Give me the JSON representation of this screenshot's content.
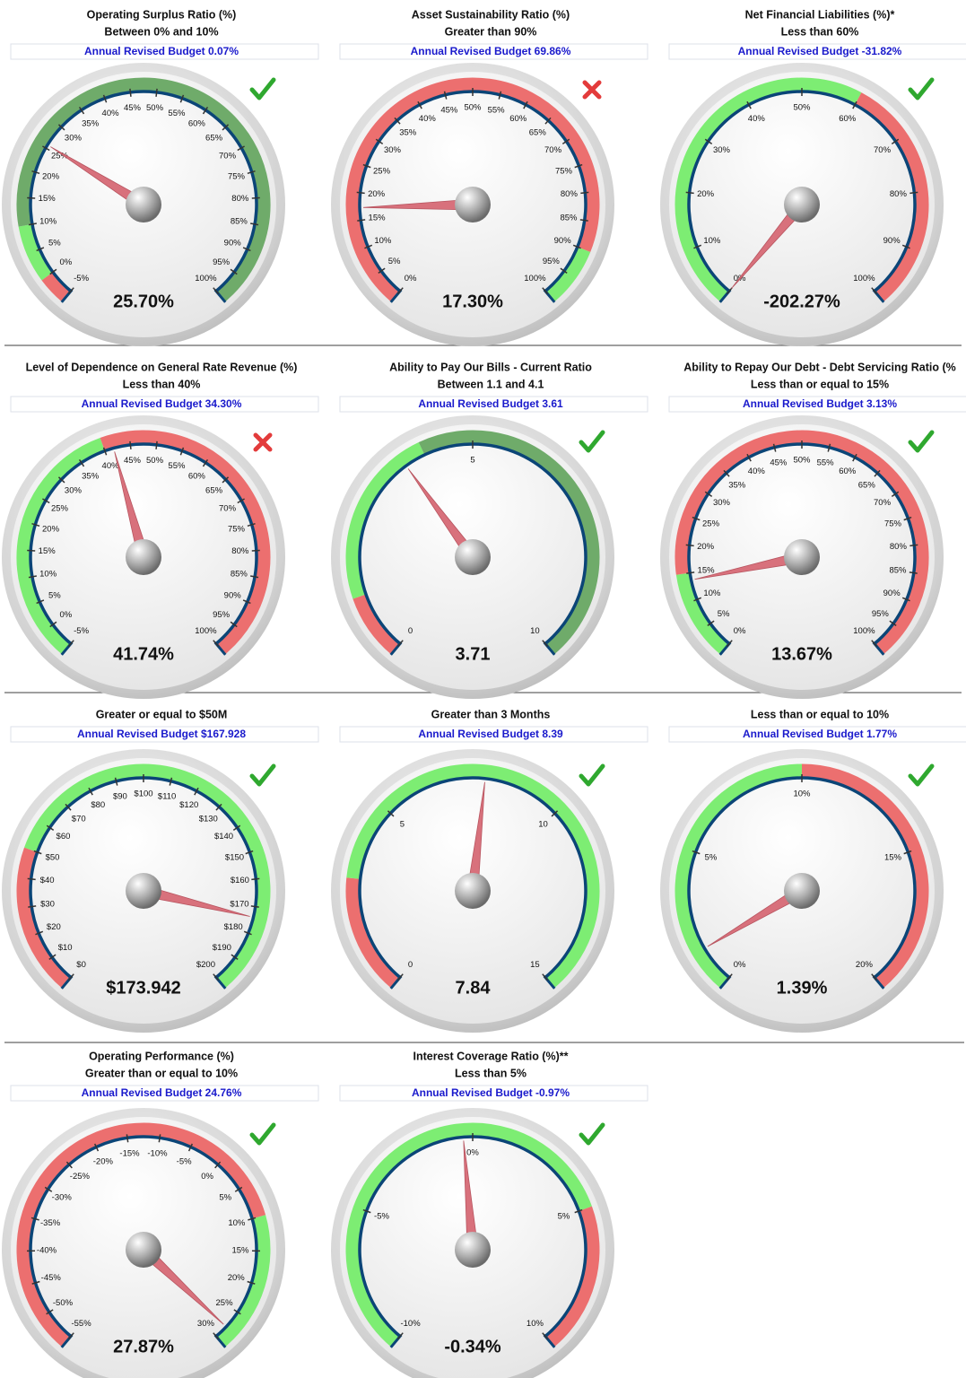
{
  "chart_data": [
    {
      "type": "gauge",
      "title": "Operating Surplus Ratio (%)",
      "subtitle": "Between 0% and 10%",
      "annotation": "Annual Revised Budget 0.07%",
      "value": 25.7,
      "value_label": "25.70%",
      "status": "pass",
      "ylim": [
        -5,
        100
      ],
      "yticks": [
        {
          "value": -5,
          "label": "-5%"
        },
        {
          "value": 0,
          "label": "0%"
        },
        {
          "value": 5,
          "label": "5%"
        },
        {
          "value": 10,
          "label": "10%"
        },
        {
          "value": 15,
          "label": "15%"
        },
        {
          "value": 20,
          "label": "20%"
        },
        {
          "value": 25,
          "label": "25%"
        },
        {
          "value": 30,
          "label": "30%"
        },
        {
          "value": 35,
          "label": "35%"
        },
        {
          "value": 40,
          "label": "40%"
        },
        {
          "value": 45,
          "label": "45%"
        },
        {
          "value": 50,
          "label": "50%"
        },
        {
          "value": 55,
          "label": "55%"
        },
        {
          "value": 60,
          "label": "60%"
        },
        {
          "value": 65,
          "label": "65%"
        },
        {
          "value": 70,
          "label": "70%"
        },
        {
          "value": 75,
          "label": "75%"
        },
        {
          "value": 80,
          "label": "80%"
        },
        {
          "value": 85,
          "label": "85%"
        },
        {
          "value": 90,
          "label": "90%"
        },
        {
          "value": 95,
          "label": "95%"
        },
        {
          "value": 100,
          "label": "100%"
        }
      ],
      "bands": [
        {
          "from": -5,
          "to": 0,
          "color": "#ec6f6f"
        },
        {
          "from": 0,
          "to": 10,
          "color": "#7ded73"
        },
        {
          "from": 10,
          "to": 100,
          "color": "#6fab6a"
        }
      ]
    },
    {
      "type": "gauge",
      "title": "Asset Sustainability Ratio (%)",
      "subtitle": "Greater than 90%",
      "annotation": "Annual Revised Budget  69.86%",
      "value": 17.3,
      "value_label": "17.30%",
      "status": "fail",
      "ylim": [
        0,
        100
      ],
      "yticks": [
        {
          "value": 0,
          "label": "0%"
        },
        {
          "value": 5,
          "label": "5%"
        },
        {
          "value": 10,
          "label": "10%"
        },
        {
          "value": 15,
          "label": "15%"
        },
        {
          "value": 20,
          "label": "20%"
        },
        {
          "value": 25,
          "label": "25%"
        },
        {
          "value": 30,
          "label": "30%"
        },
        {
          "value": 35,
          "label": "35%"
        },
        {
          "value": 40,
          "label": "40%"
        },
        {
          "value": 45,
          "label": "45%"
        },
        {
          "value": 50,
          "label": "50%"
        },
        {
          "value": 55,
          "label": "55%"
        },
        {
          "value": 60,
          "label": "60%"
        },
        {
          "value": 65,
          "label": "65%"
        },
        {
          "value": 70,
          "label": "70%"
        },
        {
          "value": 75,
          "label": "75%"
        },
        {
          "value": 80,
          "label": "80%"
        },
        {
          "value": 85,
          "label": "85%"
        },
        {
          "value": 90,
          "label": "90%"
        },
        {
          "value": 95,
          "label": "95%"
        },
        {
          "value": 100,
          "label": "100%"
        }
      ],
      "bands": [
        {
          "from": 0,
          "to": 90,
          "color": "#ec6f6f"
        },
        {
          "from": 90,
          "to": 100,
          "color": "#7ded73"
        }
      ]
    },
    {
      "type": "gauge",
      "title": "Net Financial Liabilities (%)*",
      "subtitle": "Less than 60%",
      "annotation": "Annual Revised Budget -31.82%",
      "value": -202.27,
      "value_label": "-202.27%",
      "status": "pass",
      "ylim": [
        0,
        100
      ],
      "yticks": [
        {
          "value": 0,
          "label": "0%"
        },
        {
          "value": 10,
          "label": "10%"
        },
        {
          "value": 20,
          "label": "20%"
        },
        {
          "value": 30,
          "label": "30%"
        },
        {
          "value": 40,
          "label": "40%"
        },
        {
          "value": 50,
          "label": "50%"
        },
        {
          "value": 60,
          "label": "60%"
        },
        {
          "value": 70,
          "label": "70%"
        },
        {
          "value": 80,
          "label": "80%"
        },
        {
          "value": 90,
          "label": "90%"
        },
        {
          "value": 100,
          "label": "100%"
        }
      ],
      "bands": [
        {
          "from": 0,
          "to": 60,
          "color": "#7ded73"
        },
        {
          "from": 60,
          "to": 100,
          "color": "#ec6f6f"
        }
      ]
    },
    {
      "type": "gauge",
      "title": "Level of Dependence on General Rate Revenue (%)",
      "subtitle": "Less than 40%",
      "annotation": "Annual Revised Budget  34.30%",
      "value": 41.74,
      "value_label": "41.74%",
      "status": "fail",
      "ylim": [
        -5,
        100
      ],
      "yticks": [
        {
          "value": -5,
          "label": "-5%"
        },
        {
          "value": 0,
          "label": "0%"
        },
        {
          "value": 5,
          "label": "5%"
        },
        {
          "value": 10,
          "label": "10%"
        },
        {
          "value": 15,
          "label": "15%"
        },
        {
          "value": 20,
          "label": "20%"
        },
        {
          "value": 25,
          "label": "25%"
        },
        {
          "value": 30,
          "label": "30%"
        },
        {
          "value": 35,
          "label": "35%"
        },
        {
          "value": 40,
          "label": "40%"
        },
        {
          "value": 45,
          "label": "45%"
        },
        {
          "value": 50,
          "label": "50%"
        },
        {
          "value": 55,
          "label": "55%"
        },
        {
          "value": 60,
          "label": "60%"
        },
        {
          "value": 65,
          "label": "65%"
        },
        {
          "value": 70,
          "label": "70%"
        },
        {
          "value": 75,
          "label": "75%"
        },
        {
          "value": 80,
          "label": "80%"
        },
        {
          "value": 85,
          "label": "85%"
        },
        {
          "value": 90,
          "label": "90%"
        },
        {
          "value": 95,
          "label": "95%"
        },
        {
          "value": 100,
          "label": "100%"
        }
      ],
      "bands": [
        {
          "from": -5,
          "to": 40,
          "color": "#7ded73"
        },
        {
          "from": 40,
          "to": 100,
          "color": "#ec6f6f"
        }
      ]
    },
    {
      "type": "gauge",
      "title": "Ability to Pay Our Bills - Current Ratio",
      "subtitle": "Between 1.1 and 4.1",
      "annotation": "Annual Revised Budget 3.61",
      "value": 3.71,
      "status": "pass",
      "ylim": [
        0,
        10
      ],
      "yticks": [
        0,
        5,
        10
      ],
      "bands": [
        {
          "from": 0,
          "to": 1.1,
          "color": "#ec6f6f"
        },
        {
          "from": 1.1,
          "to": 4.1,
          "color": "#7ded73"
        },
        {
          "from": 4.1,
          "to": 10,
          "color": "#6fab6a"
        }
      ]
    },
    {
      "type": "gauge",
      "title": "Ability to Repay Our Debt - Debt Servicing Ratio (%",
      "subtitle": "Less than or equal to 15%",
      "annotation": "Annual Revised Budget 3.13%",
      "value": 13.67,
      "value_label": "13.67%",
      "status": "pass",
      "ylim": [
        0,
        100
      ],
      "yticks": [
        {
          "value": 0,
          "label": "0%"
        },
        {
          "value": 5,
          "label": "5%"
        },
        {
          "value": 10,
          "label": "10%"
        },
        {
          "value": 15,
          "label": "15%"
        },
        {
          "value": 20,
          "label": "20%"
        },
        {
          "value": 25,
          "label": "25%"
        },
        {
          "value": 30,
          "label": "30%"
        },
        {
          "value": 35,
          "label": "35%"
        },
        {
          "value": 40,
          "label": "40%"
        },
        {
          "value": 45,
          "label": "45%"
        },
        {
          "value": 50,
          "label": "50%"
        },
        {
          "value": 55,
          "label": "55%"
        },
        {
          "value": 60,
          "label": "60%"
        },
        {
          "value": 65,
          "label": "65%"
        },
        {
          "value": 70,
          "label": "70%"
        },
        {
          "value": 75,
          "label": "75%"
        },
        {
          "value": 80,
          "label": "80%"
        },
        {
          "value": 85,
          "label": "85%"
        },
        {
          "value": 90,
          "label": "90%"
        },
        {
          "value": 95,
          "label": "95%"
        },
        {
          "value": 100,
          "label": "100%"
        }
      ],
      "bands": [
        {
          "from": 0,
          "to": 15,
          "color": "#7ded73"
        },
        {
          "from": 15,
          "to": 100,
          "color": "#ec6f6f"
        }
      ]
    },
    {
      "type": "gauge",
      "subtitle": "Greater or equal to $50M",
      "annotation": "Annual Revised Budget $167.928",
      "value": 173.942,
      "value_label": "$173.942",
      "status": "pass",
      "ylim": [
        0,
        200
      ],
      "yticks": [
        {
          "value": 0,
          "label": "$0"
        },
        {
          "value": 10,
          "label": "$10"
        },
        {
          "value": 20,
          "label": "$20"
        },
        {
          "value": 30,
          "label": "$30"
        },
        {
          "value": 40,
          "label": "$40"
        },
        {
          "value": 50,
          "label": "$50"
        },
        {
          "value": 60,
          "label": "$60"
        },
        {
          "value": 70,
          "label": "$70"
        },
        {
          "value": 80,
          "label": "$80"
        },
        {
          "value": 90,
          "label": "$90"
        },
        {
          "value": 100,
          "label": "$100"
        },
        {
          "value": 110,
          "label": "$110"
        },
        {
          "value": 120,
          "label": "$120"
        },
        {
          "value": 130,
          "label": "$130"
        },
        {
          "value": 140,
          "label": "$140"
        },
        {
          "value": 150,
          "label": "$150"
        },
        {
          "value": 160,
          "label": "$160"
        },
        {
          "value": 170,
          "label": "$170"
        },
        {
          "value": 180,
          "label": "$180"
        },
        {
          "value": 190,
          "label": "$190"
        },
        {
          "value": 200,
          "label": "$200"
        }
      ],
      "bands": [
        {
          "from": 0,
          "to": 50,
          "color": "#ec6f6f"
        },
        {
          "from": 50,
          "to": 200,
          "color": "#7ded73"
        }
      ]
    },
    {
      "type": "gauge",
      "subtitle": "Greater than 3 Months",
      "annotation": "Annual Revised Budget 8.39",
      "value": 7.84,
      "status": "pass",
      "ylim": [
        0,
        15
      ],
      "yticks": [
        0,
        5,
        10,
        15
      ],
      "bands": [
        {
          "from": 0,
          "to": 3,
          "color": "#ec6f6f"
        },
        {
          "from": 3,
          "to": 15,
          "color": "#7ded73"
        }
      ]
    },
    {
      "type": "gauge",
      "subtitle": "Less than or equal to 10%",
      "annotation": "Annual Revised Budget 1.77%",
      "value": 1.39,
      "value_label": "1.39%",
      "status": "pass",
      "ylim": [
        0,
        20
      ],
      "yticks": [
        {
          "value": 0,
          "label": "0%"
        },
        {
          "value": 5,
          "label": "5%"
        },
        {
          "value": 10,
          "label": "10%"
        },
        {
          "value": 15,
          "label": "15%"
        },
        {
          "value": 20,
          "label": "20%"
        }
      ],
      "bands": [
        {
          "from": 0,
          "to": 10,
          "color": "#7ded73"
        },
        {
          "from": 10,
          "to": 20,
          "color": "#ec6f6f"
        }
      ]
    },
    {
      "type": "gauge",
      "title": "Operating Performance (%)",
      "subtitle": "Greater than or equal to 10%",
      "annotation": "Annual Revised Budget 24.76%",
      "value": 27.87,
      "value_label": "27.87%",
      "status": "pass",
      "ylim": [
        -55,
        30
      ],
      "yticks": [
        {
          "value": -55,
          "label": "-55%"
        },
        {
          "value": -50,
          "label": "-50%"
        },
        {
          "value": -45,
          "label": "-45%"
        },
        {
          "value": -40,
          "label": "-40%"
        },
        {
          "value": -35,
          "label": "-35%"
        },
        {
          "value": -30,
          "label": "-30%"
        },
        {
          "value": -25,
          "label": "-25%"
        },
        {
          "value": -20,
          "label": "-20%"
        },
        {
          "value": -15,
          "label": "-15%"
        },
        {
          "value": -10,
          "label": "-10%"
        },
        {
          "value": -5,
          "label": "-5%"
        },
        {
          "value": 0,
          "label": "0%"
        },
        {
          "value": 5,
          "label": "5%"
        },
        {
          "value": 10,
          "label": "10%"
        },
        {
          "value": 15,
          "label": "15%"
        },
        {
          "value": 20,
          "label": "20%"
        },
        {
          "value": 25,
          "label": "25%"
        },
        {
          "value": 30,
          "label": "30%"
        }
      ],
      "bands": [
        {
          "from": -55,
          "to": 10,
          "color": "#ec6f6f"
        },
        {
          "from": 10,
          "to": 30,
          "color": "#7ded73"
        }
      ]
    },
    {
      "type": "gauge",
      "title": "Interest Coverage Ratio (%)**",
      "subtitle": "Less than 5%",
      "annotation": "Annual Revised Budget -0.97%",
      "value": -0.34,
      "value_label": "-0.34%",
      "status": "pass",
      "ylim": [
        -10,
        10
      ],
      "yticks": [
        {
          "value": -10,
          "label": "-10%"
        },
        {
          "value": -5,
          "label": "-5%"
        },
        {
          "value": 0,
          "label": "0%"
        },
        {
          "value": 5,
          "label": "5%"
        },
        {
          "value": 10,
          "label": "10%"
        }
      ],
      "bands": [
        {
          "from": -10,
          "to": 5,
          "color": "#7ded73"
        },
        {
          "from": 5,
          "to": 10,
          "color": "#ec6f6f"
        }
      ]
    }
  ]
}
